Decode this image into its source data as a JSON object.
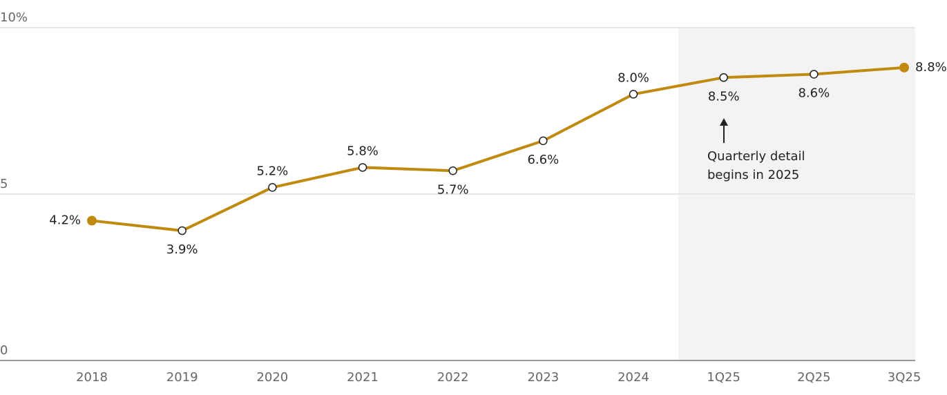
{
  "chart_data": {
    "type": "line",
    "categories": [
      "2018",
      "2019",
      "2020",
      "2021",
      "2022",
      "2023",
      "2024",
      "1Q25",
      "2Q25",
      "3Q25"
    ],
    "series": [
      {
        "color": "#c08a0f",
        "values": [
          4.2,
          3.9,
          5.2,
          5.8,
          5.7,
          6.6,
          8.0,
          8.5,
          8.6,
          8.8
        ],
        "value_labels": [
          "4.2%",
          "3.9%",
          "5.2%",
          "5.8%",
          "5.7%",
          "6.6%",
          "8.0%",
          "8.5%",
          "8.6%",
          "8.8%"
        ]
      }
    ],
    "ylim": [
      0,
      10
    ],
    "yticks": [
      0,
      5,
      {
        "value": 10,
        "label": "10%"
      }
    ],
    "grid": true,
    "annotation": [
      "Quarterly detail",
      "begins in 2025"
    ]
  }
}
